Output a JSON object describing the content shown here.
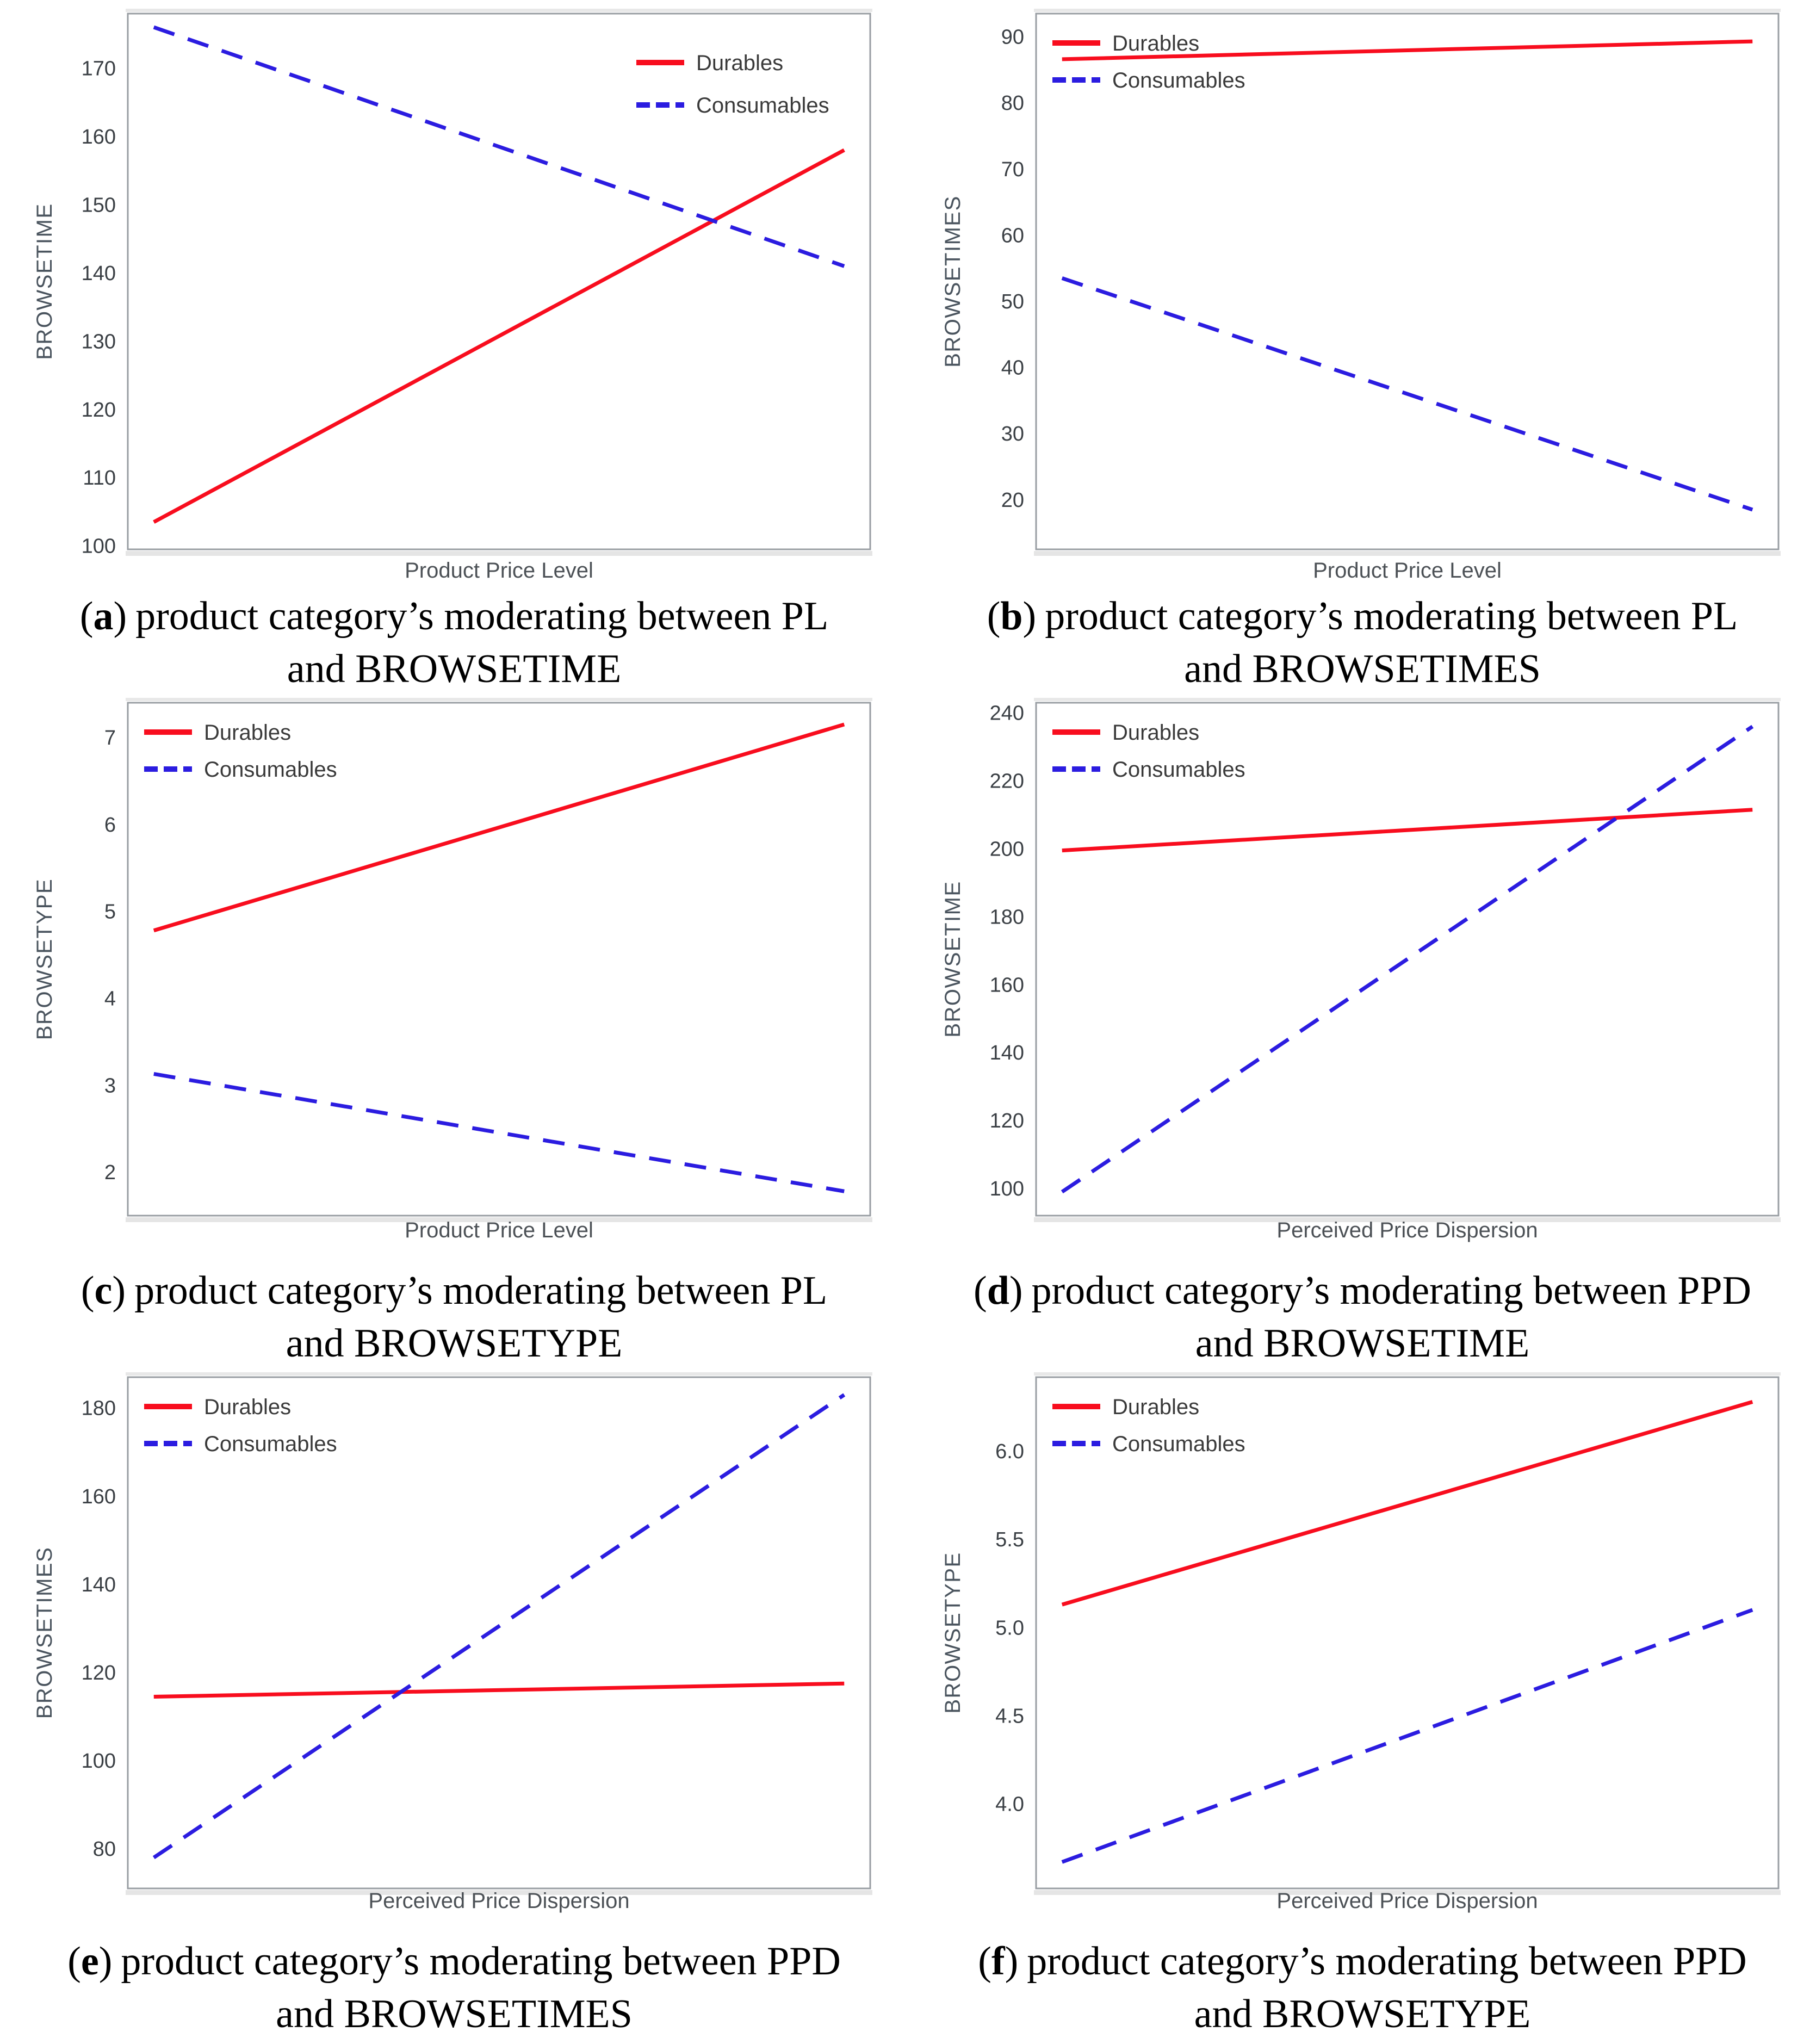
{
  "page": {
    "background": "#ffffff"
  },
  "colors": {
    "durables": "#F80D1E",
    "consumables": "#2B1CE0",
    "axis_border": "#999EA3",
    "tick_text": "#3A3F44",
    "axis_label": "#4A545E",
    "xlabel_text": "#4C5156",
    "legend_text": "#3A3A3A",
    "caption_text": "#000000",
    "shadow": "#E2E2E2"
  },
  "panels": [
    {
      "id": "a",
      "caption": {
        "open": "(",
        "letter": "a",
        "close": ")",
        "line1": "product category’s moderating between PL",
        "line2": "and BROWSETIME"
      },
      "chart_data": {
        "type": "line",
        "xlabel": "Product Price Level",
        "ylabel": "BROWSETIME",
        "ylim": [
          99.5,
          178
        ],
        "yticks": [
          100,
          110,
          120,
          130,
          140,
          150,
          160,
          170
        ],
        "yticklabels": [
          "100",
          "110",
          "120",
          "130",
          "140",
          "150",
          "160",
          "170"
        ],
        "grid": false,
        "legend_position": "top-right",
        "series": [
          {
            "name": "Durables",
            "style": "solid",
            "color": "#F80D1E",
            "values": [
              103.5,
              158
            ]
          },
          {
            "name": "Consumables",
            "style": "dashed",
            "color": "#2B1CE0",
            "values": [
              176,
              141
            ]
          }
        ]
      }
    },
    {
      "id": "b",
      "caption": {
        "open": "(",
        "letter": "b",
        "close": ")",
        "line1": "product category’s moderating between PL",
        "line2": "and BROWSETIMES"
      },
      "chart_data": {
        "type": "line",
        "xlabel": "Product Price Level",
        "ylabel": "BROWSETIMES",
        "ylim": [
          12.5,
          93.5
        ],
        "yticks": [
          20,
          30,
          40,
          50,
          60,
          70,
          80,
          90
        ],
        "yticklabels": [
          "20",
          "30",
          "40",
          "50",
          "60",
          "70",
          "80",
          "90"
        ],
        "grid": false,
        "legend_position": "top-left",
        "series": [
          {
            "name": "Durables",
            "style": "solid",
            "color": "#F80D1E",
            "values": [
              86.6,
              89.3
            ]
          },
          {
            "name": "Consumables",
            "style": "dashed",
            "color": "#2B1CE0",
            "values": [
              53.5,
              18.5
            ]
          }
        ]
      }
    },
    {
      "id": "c",
      "caption": {
        "open": "(",
        "letter": "c",
        "close": ")",
        "line1": "product category’s moderating between PL",
        "line2": "and BROWSETYPE"
      },
      "chart_data": {
        "type": "line",
        "xlabel": "Product Price Level",
        "ylabel": "BROWSETYPE",
        "ylim": [
          1.5,
          7.4
        ],
        "yticks": [
          2,
          3,
          4,
          5,
          6,
          7
        ],
        "yticklabels": [
          "2",
          "3",
          "4",
          "5",
          "6",
          "7"
        ],
        "grid": false,
        "legend_position": "top-left",
        "series": [
          {
            "name": "Durables",
            "style": "solid",
            "color": "#F80D1E",
            "values": [
              4.78,
              7.15
            ]
          },
          {
            "name": "Consumables",
            "style": "dashed",
            "color": "#2B1CE0",
            "values": [
              3.13,
              1.78
            ]
          }
        ]
      }
    },
    {
      "id": "d",
      "caption": {
        "open": "(",
        "letter": "d",
        "close": ")",
        "line1": "product category’s moderating between PPD",
        "line2": "and BROWSETIME"
      },
      "chart_data": {
        "type": "line",
        "xlabel": "Perceived Price Dispersion",
        "ylabel": "BROWSETIME",
        "ylim": [
          92,
          243
        ],
        "yticks": [
          100,
          120,
          140,
          160,
          180,
          200,
          220,
          240
        ],
        "yticklabels": [
          "100",
          "120",
          "140",
          "160",
          "180",
          "200",
          "220",
          "240"
        ],
        "grid": false,
        "legend_position": "top-left",
        "series": [
          {
            "name": "Durables",
            "style": "solid",
            "color": "#F80D1E",
            "values": [
              199.5,
              211.5
            ]
          },
          {
            "name": "Consumables",
            "style": "dashed",
            "color": "#2B1CE0",
            "values": [
              99,
              236
            ]
          }
        ]
      }
    },
    {
      "id": "e",
      "caption": {
        "open": "(",
        "letter": "e",
        "close": ")",
        "line1": "product category’s moderating between PPD",
        "line2": "and BROWSETIMES"
      },
      "chart_data": {
        "type": "line",
        "xlabel": "Perceived Price Dispersion",
        "ylabel": "BROWSETIMES",
        "ylim": [
          71,
          187
        ],
        "yticks": [
          80,
          100,
          120,
          140,
          160,
          180
        ],
        "yticklabels": [
          "80",
          "100",
          "120",
          "140",
          "160",
          "180"
        ],
        "grid": false,
        "legend_position": "top-left",
        "series": [
          {
            "name": "Durables",
            "style": "solid",
            "color": "#F80D1E",
            "values": [
              114.5,
              117.5
            ]
          },
          {
            "name": "Consumables",
            "style": "dashed",
            "color": "#2B1CE0",
            "values": [
              78,
              183
            ]
          }
        ]
      }
    },
    {
      "id": "f",
      "caption": {
        "open": "(",
        "letter": "f",
        "close": ")",
        "line1": "product category’s moderating between PPD",
        "line2": "and BROWSETYPE"
      },
      "chart_data": {
        "type": "line",
        "xlabel": "Perceived Price Dispersion",
        "ylabel": "BROWSETYPE",
        "ylim": [
          3.52,
          6.42
        ],
        "yticks": [
          4.0,
          4.5,
          5.0,
          5.5,
          6.0
        ],
        "yticklabels": [
          "4.0",
          "4.5",
          "5.0",
          "5.5",
          "6.0"
        ],
        "grid": false,
        "legend_position": "top-left",
        "series": [
          {
            "name": "Durables",
            "style": "solid",
            "color": "#F80D1E",
            "values": [
              5.13,
              6.28
            ]
          },
          {
            "name": "Consumables",
            "style": "dashed",
            "color": "#2B1CE0",
            "values": [
              3.67,
              5.1
            ]
          }
        ]
      }
    }
  ]
}
